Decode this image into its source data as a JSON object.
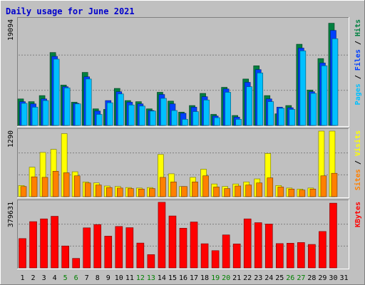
{
  "chart_data": {
    "type": "bar",
    "title": "Daily usage for June 2021",
    "categories": [
      "1",
      "2",
      "3",
      "4",
      "5",
      "6",
      "7",
      "8",
      "9",
      "10",
      "11",
      "12",
      "13",
      "14",
      "15",
      "16",
      "17",
      "18",
      "19",
      "20",
      "21",
      "22",
      "23",
      "24",
      "25",
      "26",
      "27",
      "28",
      "29",
      "30",
      "31"
    ],
    "weekend_categories": [
      "5",
      "6",
      "12",
      "13",
      "19",
      "20",
      "26",
      "27"
    ],
    "colors": {
      "background": "#c0c0c0",
      "plot_background": "#c0c0c0",
      "title": "#0000cc",
      "hits": "#008040",
      "files": "#0040ff",
      "pages": "#00c0ff",
      "visits": "#ffff00",
      "sites": "#ff8000",
      "kbytes": "#ff0000",
      "weekday_label": "#000000",
      "weekend_label": "#008000"
    },
    "panels": [
      {
        "name": "hits-files-pages",
        "ymax_label": "19094",
        "ymax": 19094,
        "legend": [
          {
            "text": "Pages",
            "color_key": "pages"
          },
          {
            "text": " / ",
            "color_key": "weekday_label"
          },
          {
            "text": "Files",
            "color_key": "files"
          },
          {
            "text": " / ",
            "color_key": "weekday_label"
          },
          {
            "text": "Hits",
            "color_key": "hits"
          }
        ],
        "series": [
          {
            "name": "Hits",
            "values": [
              4800,
              4300,
              5400,
              13200,
              7300,
              4200,
              9600,
              3000,
              2900,
              6700,
              4500,
              4300,
              3000,
              6000,
              4400,
              2400,
              3600,
              5800,
              2000,
              6900,
              1800,
              8400,
              10800,
              5400,
              2100,
              3600,
              14700,
              6400,
              12100,
              18500,
              0
            ]
          },
          {
            "name": "Files",
            "values": [
              4300,
              3900,
              4800,
              12500,
              7000,
              4000,
              8800,
              2600,
              4500,
              6100,
              4200,
              3900,
              2700,
              5600,
              3900,
              2200,
              3300,
              5200,
              1700,
              6600,
              1500,
              7800,
              10100,
              4800,
              3300,
              3200,
              14000,
              6100,
              11300,
              17200,
              0
            ]
          },
          {
            "name": "Pages",
            "values": [
              4000,
              3300,
              4500,
              12000,
              6800,
              3900,
              8400,
              2000,
              4100,
              5700,
              3700,
              3500,
              2600,
              4900,
              2700,
              1100,
              2500,
              4600,
              1400,
              6000,
              1100,
              7000,
              9500,
              4300,
              3100,
              2900,
              13500,
              5800,
              10800,
              15700,
              0
            ]
          }
        ]
      },
      {
        "name": "visits-sites",
        "ymax_label": "1290",
        "ymax": 1290,
        "legend": [
          {
            "text": "Sites",
            "color_key": "sites"
          },
          {
            "text": " / ",
            "color_key": "weekday_label"
          },
          {
            "text": "Visits",
            "color_key": "visits"
          }
        ],
        "series": [
          {
            "name": "Visits",
            "values": [
              220,
              580,
              870,
              930,
              1240,
              490,
              290,
              270,
              210,
              200,
              180,
              170,
              180,
              830,
              450,
              200,
              380,
              540,
              250,
              200,
              250,
              290,
              350,
              850,
              220,
              170,
              150,
              170,
              1290,
              1290,
              0
            ]
          },
          {
            "name": "Sites",
            "values": [
              200,
              390,
              380,
              500,
              470,
              410,
              270,
              230,
              180,
              170,
              160,
              150,
              160,
              380,
              290,
              200,
              290,
              410,
              190,
              160,
              210,
              230,
              270,
              370,
              190,
              150,
              130,
              150,
              410,
              460,
              0
            ]
          }
        ]
      },
      {
        "name": "kbytes",
        "ymax_label": "379631",
        "ymax": 379631,
        "legend": [
          {
            "text": "KBytes",
            "color_key": "kbytes"
          }
        ],
        "series": [
          {
            "name": "KBytes",
            "values": [
              170000,
              268000,
              284000,
              299000,
              127000,
              55000,
              232000,
              251000,
              184000,
              240000,
              233000,
              144000,
              77000,
              380000,
              301000,
              230000,
              266000,
              140000,
              100000,
              191000,
              139000,
              284000,
              262000,
              254000,
              141000,
              143000,
              147000,
              136000,
              211000,
              375000,
              0
            ]
          }
        ]
      }
    ]
  }
}
